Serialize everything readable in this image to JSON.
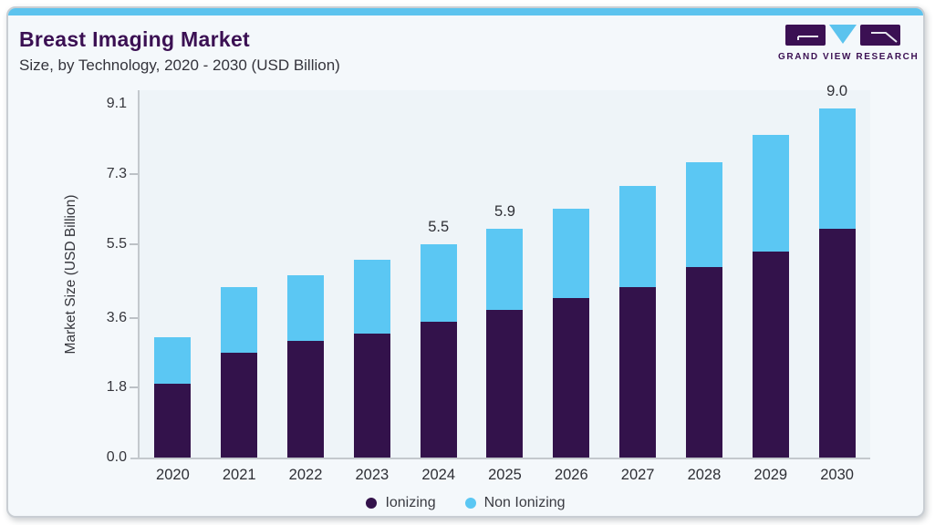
{
  "page": {
    "title": "Breast Imaging Market",
    "subtitle": "Size, by Technology, 2020 - 2030 (USD Billion)"
  },
  "logo": {
    "text": "GRAND VIEW RESEARCH",
    "icon": "gvr-logo-icon"
  },
  "colors": {
    "ionizing": "#33124b",
    "non_ionizing": "#5bc7f3",
    "top_strip": "#5cc3ee",
    "brand_purple": "#3b1053",
    "card_background": "#f4f8fb",
    "plot_background": "#eef4f8",
    "axis_line": "#c3c8cd",
    "text_dark": "#2e2f35"
  },
  "chart_data": {
    "type": "bar",
    "stacked": true,
    "title": "Breast Imaging Market Size, by Technology, 2020 - 2030 (USD Billion)",
    "categories": [
      "2020",
      "2021",
      "2022",
      "2023",
      "2024",
      "2025",
      "2026",
      "2027",
      "2028",
      "2029",
      "2030"
    ],
    "series": [
      {
        "name": "Ionizing",
        "color": "#33124b",
        "values": [
          1.9,
          2.7,
          3.0,
          3.2,
          3.5,
          3.8,
          4.1,
          4.4,
          4.9,
          5.3,
          5.9
        ]
      },
      {
        "name": "Non Ionizing",
        "color": "#5bc7f3",
        "values": [
          1.2,
          1.7,
          1.7,
          1.9,
          2.0,
          2.1,
          2.3,
          2.6,
          2.7,
          3.0,
          3.1
        ]
      }
    ],
    "totals": [
      3.1,
      4.4,
      4.7,
      5.1,
      5.5,
      5.9,
      6.4,
      7.0,
      7.6,
      8.3,
      9.0
    ],
    "total_labels": {
      "2024": "5.5",
      "2025": "5.9",
      "2030": "9.0"
    },
    "xlabel": "",
    "ylabel": "Market Size (USD Billion)",
    "ylim": [
      0,
      9.1
    ],
    "yticks": [
      0.0,
      1.8,
      3.6,
      5.5,
      7.3,
      9.1
    ],
    "ytick_labels": [
      "0.0",
      "1.8",
      "3.6",
      "5.5",
      "7.3",
      "9.1"
    ],
    "grid": false,
    "legend_position": "bottom"
  }
}
